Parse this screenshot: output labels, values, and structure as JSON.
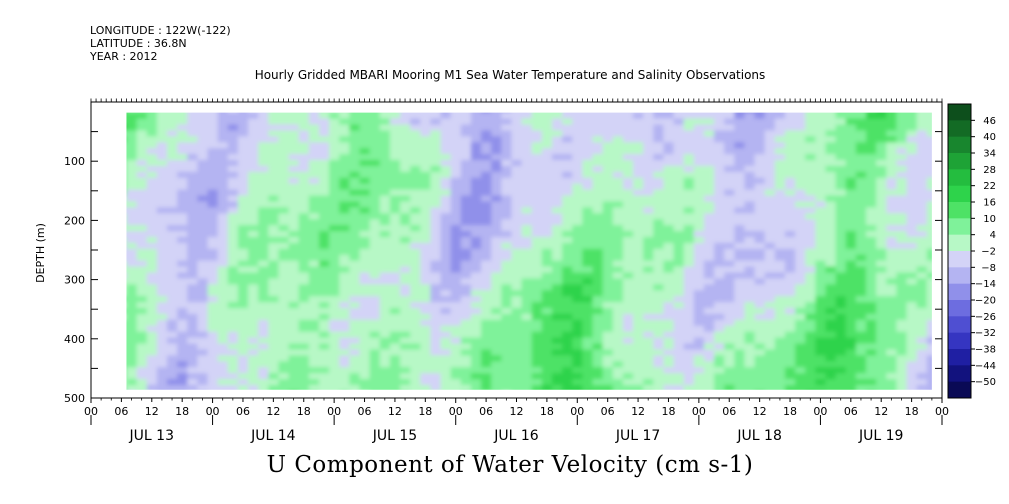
{
  "header": {
    "longitude": "LONGITUDE : 122W(-122)",
    "latitude": "LATITUDE : 36.8N",
    "year": "YEAR : 2012"
  },
  "chart_data": {
    "type": "heatmap",
    "title": "Hourly Gridded MBARI Mooring M1 Sea Water Temperature and Salinity Observations",
    "variable_title": "U Component of Water Velocity (cm s-1)",
    "ylabel": "DEPTH (m)",
    "xlabel": "",
    "ylim": [
      500,
      0
    ],
    "y_inverted": true,
    "y_ticks": [
      100,
      200,
      300,
      400,
      500
    ],
    "x_range_hours": [
      0,
      168
    ],
    "x_hour_ticks": [
      "00",
      "06",
      "12",
      "18",
      "00",
      "06",
      "12",
      "18",
      "00",
      "06",
      "12",
      "18",
      "00",
      "06",
      "12",
      "18",
      "00",
      "06",
      "12",
      "18",
      "00",
      "06",
      "12",
      "18",
      "00",
      "06",
      "12",
      "18",
      "00"
    ],
    "x_day_labels": [
      "JUL 13",
      "JUL 14",
      "JUL 15",
      "JUL 16",
      "JUL 17",
      "JUL 18",
      "JUL 19"
    ],
    "data_extent": {
      "depth_min": 18,
      "depth_max": 486,
      "start_hour": 7,
      "end_hour": 166
    },
    "colorbar": {
      "levels": [
        46,
        40,
        34,
        28,
        22,
        16,
        10,
        4,
        -2,
        -8,
        -14,
        -20,
        -26,
        -32,
        -38,
        -44,
        -50
      ],
      "colors": [
        "#0d4f1c",
        "#136b25",
        "#18862e",
        "#1ea336",
        "#24bd3f",
        "#2ed34b",
        "#4ee266",
        "#7ff29a",
        "#b7f8c6",
        "#d3d3f7",
        "#b4b4f2",
        "#9090ea",
        "#6d6de0",
        "#4f4fd2",
        "#3535c1",
        "#1f1fa3",
        "#12127e",
        "#0a0a55"
      ]
    },
    "description_of_field": "Alternating vertical bands of positive (green) and negative (blue/purple) velocity; strongest positive (bright green) at depths 300-480 m on Jul 16-18; negative bands dominate upper layers on Jul 16-17."
  }
}
